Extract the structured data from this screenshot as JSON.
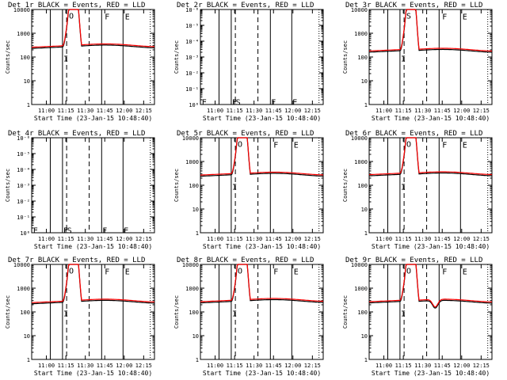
{
  "chart_data": [
    {
      "type": "line",
      "title": "Det 1r BLACK = Events, RED = LLD",
      "xlabel": "Start Time (23-Jan-15 10:48:40)",
      "ylabel": "Counts/sec",
      "yscale": "log",
      "yticks": [
        "1",
        "10",
        "100",
        "1000",
        "10000"
      ],
      "xticks": [
        "11:00",
        "11:15",
        "11:30",
        "11:45",
        "12:00",
        "12:15"
      ],
      "markers": [
        "I",
        "O",
        "F",
        "E"
      ],
      "series": [
        {
          "name": "Events",
          "color": "#000000"
        },
        {
          "name": "LLD",
          "color": "#ff0000"
        }
      ],
      "base": 230,
      "peak": 30000,
      "tail": 290,
      "profile": "flare"
    },
    {
      "type": "line",
      "title": "Det 2r BLACK = Events, RED = LLD",
      "xlabel": "Start Time (23-Jan-15 10:48:40)",
      "ylabel": "Counts/sec",
      "yscale": "log",
      "yticks": [
        "10⁶",
        "10⁻¹",
        "10⁻²",
        "10⁻³",
        "10⁻⁴",
        "10⁻⁵",
        "10⁻⁶"
      ],
      "xticks": [
        "11:00",
        "11:15",
        "11:30",
        "11:45",
        "12:00",
        "12:15"
      ],
      "markers": [
        "E",
        "F",
        "S",
        "F",
        "E"
      ],
      "series": [],
      "profile": "empty"
    },
    {
      "type": "line",
      "title": "Det 3r BLACK = Events, RED = LLD",
      "xlabel": "Start Time (23-Jan-15 10:48:40)",
      "ylabel": "Counts/sec",
      "yscale": "log",
      "yticks": [
        "1",
        "10",
        "100",
        "1000",
        "10000"
      ],
      "xticks": [
        "11:00",
        "11:15",
        "11:30",
        "11:45",
        "12:00",
        "12:15"
      ],
      "markers": [
        "I",
        "S",
        "F",
        "E"
      ],
      "series": [
        {
          "name": "Events",
          "color": "#000000"
        },
        {
          "name": "LLD",
          "color": "#ff0000"
        }
      ],
      "base": 160,
      "peak": 30000,
      "tail": 190,
      "profile": "flare"
    },
    {
      "type": "line",
      "title": "Det 4r BLACK = Events, RED = LLD",
      "xlabel": "Start Time (23-Jan-15 10:48:40)",
      "ylabel": "Counts/sec",
      "yscale": "log",
      "yticks": [
        "10⁶",
        "10⁻¹",
        "10⁻²",
        "10⁻³",
        "10⁻⁴",
        "10⁻⁵",
        "10⁻⁶"
      ],
      "xticks": [
        "11:00",
        "11:15",
        "11:30",
        "11:45",
        "12:00",
        "12:15"
      ],
      "markers": [
        "E",
        "F",
        "S",
        "F",
        "E"
      ],
      "series": [],
      "profile": "empty"
    },
    {
      "type": "line",
      "title": "Det 5r BLACK = Events, RED = LLD",
      "xlabel": "Start Time (23-Jan-15 10:48:40)",
      "ylabel": "Counts/sec",
      "yscale": "log",
      "yticks": [
        "1",
        "10",
        "100",
        "1000",
        "10000"
      ],
      "xticks": [
        "11:00",
        "11:15",
        "11:30",
        "11:45",
        "12:00",
        "12:15"
      ],
      "markers": [
        "I",
        "O",
        "F",
        "E"
      ],
      "series": [
        {
          "name": "Events",
          "color": "#000000"
        },
        {
          "name": "LLD",
          "color": "#ff0000"
        }
      ],
      "base": 240,
      "peak": 30000,
      "tail": 290,
      "profile": "flare"
    },
    {
      "type": "line",
      "title": "Det 6r BLACK = Events, RED = LLD",
      "xlabel": "Start Time (23-Jan-15 10:48:40)",
      "ylabel": "Counts/sec",
      "yscale": "log",
      "yticks": [
        "1",
        "10",
        "100",
        "1000",
        "10000"
      ],
      "xticks": [
        "11:00",
        "11:15",
        "11:30",
        "11:45",
        "12:00",
        "12:15"
      ],
      "markers": [
        "I",
        "O",
        "F",
        "E"
      ],
      "series": [
        {
          "name": "Events",
          "color": "#000000"
        },
        {
          "name": "LLD",
          "color": "#ff0000"
        }
      ],
      "base": 250,
      "peak": 30000,
      "tail": 300,
      "profile": "flare"
    },
    {
      "type": "line",
      "title": "Det 7r BLACK = Events, RED = LLD",
      "xlabel": "Start Time (23-Jan-15 10:48:40)",
      "ylabel": "Counts/sec",
      "yscale": "log",
      "yticks": [
        "1",
        "10",
        "100",
        "1000",
        "10000"
      ],
      "xticks": [
        "11:00",
        "11:15",
        "11:30",
        "11:45",
        "12:00",
        "12:15"
      ],
      "markers": [
        "I",
        "O",
        "F",
        "E"
      ],
      "series": [
        {
          "name": "Events",
          "color": "#000000"
        },
        {
          "name": "LLD",
          "color": "#ff0000"
        }
      ],
      "base": 220,
      "peak": 30000,
      "tail": 280,
      "profile": "flare"
    },
    {
      "type": "line",
      "title": "Det 8r BLACK = Events, RED = LLD",
      "xlabel": "Start Time (23-Jan-15 10:48:40)",
      "ylabel": "Counts/sec",
      "yscale": "log",
      "yticks": [
        "1",
        "10",
        "100",
        "1000",
        "10000"
      ],
      "xticks": [
        "11:00",
        "11:15",
        "11:30",
        "11:45",
        "12:00",
        "12:15"
      ],
      "markers": [
        "I",
        "O",
        "F",
        "E"
      ],
      "series": [
        {
          "name": "Events",
          "color": "#000000"
        },
        {
          "name": "LLD",
          "color": "#ff0000"
        }
      ],
      "base": 240,
      "peak": 30000,
      "tail": 300,
      "profile": "flare"
    },
    {
      "type": "line",
      "title": "Det 9r BLACK = Events, RED = LLD",
      "xlabel": "Start Time (23-Jan-15 10:48:40)",
      "ylabel": "Counts/sec",
      "yscale": "log",
      "yticks": [
        "1",
        "10",
        "100",
        "1000",
        "10000"
      ],
      "xticks": [
        "11:00",
        "11:15",
        "11:30",
        "11:45",
        "12:00",
        "12:15"
      ],
      "markers": [
        "I",
        "O",
        "F",
        "E"
      ],
      "series": [
        {
          "name": "Events",
          "color": "#000000"
        },
        {
          "name": "LLD",
          "color": "#ff0000"
        }
      ],
      "base": 240,
      "peak": 30000,
      "tail": 280,
      "profile": "flare_dip"
    }
  ]
}
